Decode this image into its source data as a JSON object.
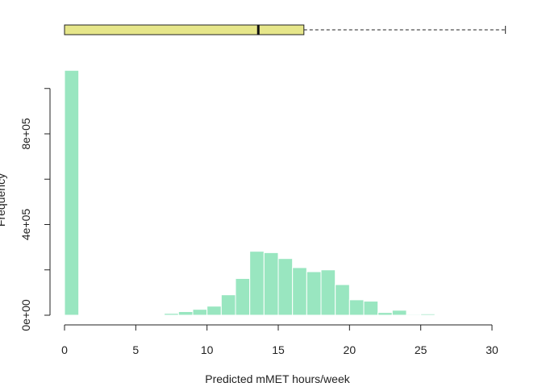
{
  "chart_data": {
    "type": "bar",
    "subtype": "histogram with boxplot",
    "title": "",
    "xlabel": "Predicted mMET hours/week",
    "ylabel": "Frequency",
    "xlim": [
      0,
      30
    ],
    "ylim": [
      0,
      1100000
    ],
    "x_ticks": [
      0,
      5,
      10,
      15,
      20,
      25,
      30
    ],
    "x_tick_labels": [
      "0",
      "5",
      "10",
      "15",
      "20",
      "25",
      "30"
    ],
    "y_ticks": [
      0,
      400000,
      800000
    ],
    "y_tick_labels": [
      "0e+00",
      "4e+05",
      "8e+05"
    ],
    "y_minor_ticks": [
      200000,
      600000,
      1000000
    ],
    "grid": false,
    "bar_color": "#99e6c0",
    "bin_width": 1,
    "bins": [
      {
        "start": 0,
        "end": 1,
        "count": 1080000
      },
      {
        "start": 1,
        "end": 2,
        "count": 0
      },
      {
        "start": 2,
        "end": 3,
        "count": 0
      },
      {
        "start": 3,
        "end": 4,
        "count": 0
      },
      {
        "start": 4,
        "end": 5,
        "count": 0
      },
      {
        "start": 5,
        "end": 6,
        "count": 0
      },
      {
        "start": 6,
        "end": 7,
        "count": 0
      },
      {
        "start": 7,
        "end": 8,
        "count": 8000
      },
      {
        "start": 8,
        "end": 9,
        "count": 16000
      },
      {
        "start": 9,
        "end": 10,
        "count": 26000
      },
      {
        "start": 10,
        "end": 11,
        "count": 40000
      },
      {
        "start": 11,
        "end": 12,
        "count": 90000
      },
      {
        "start": 12,
        "end": 13,
        "count": 162000
      },
      {
        "start": 13,
        "end": 14,
        "count": 282000
      },
      {
        "start": 14,
        "end": 15,
        "count": 276000
      },
      {
        "start": 15,
        "end": 16,
        "count": 250000
      },
      {
        "start": 16,
        "end": 17,
        "count": 210000
      },
      {
        "start": 17,
        "end": 18,
        "count": 192000
      },
      {
        "start": 18,
        "end": 19,
        "count": 200000
      },
      {
        "start": 19,
        "end": 20,
        "count": 135000
      },
      {
        "start": 20,
        "end": 21,
        "count": 68000
      },
      {
        "start": 21,
        "end": 22,
        "count": 62000
      },
      {
        "start": 22,
        "end": 23,
        "count": 12000
      },
      {
        "start": 23,
        "end": 24,
        "count": 22000
      },
      {
        "start": 24,
        "end": 25,
        "count": 4000
      },
      {
        "start": 25,
        "end": 26,
        "count": 6000
      },
      {
        "start": 26,
        "end": 27,
        "count": 3000
      },
      {
        "start": 27,
        "end": 28,
        "count": 2000
      }
    ],
    "boxplot": {
      "color": "#e6e68a",
      "min": 0,
      "q1": 0,
      "median": 13.6,
      "q3": 16.8,
      "max": 31
    }
  }
}
